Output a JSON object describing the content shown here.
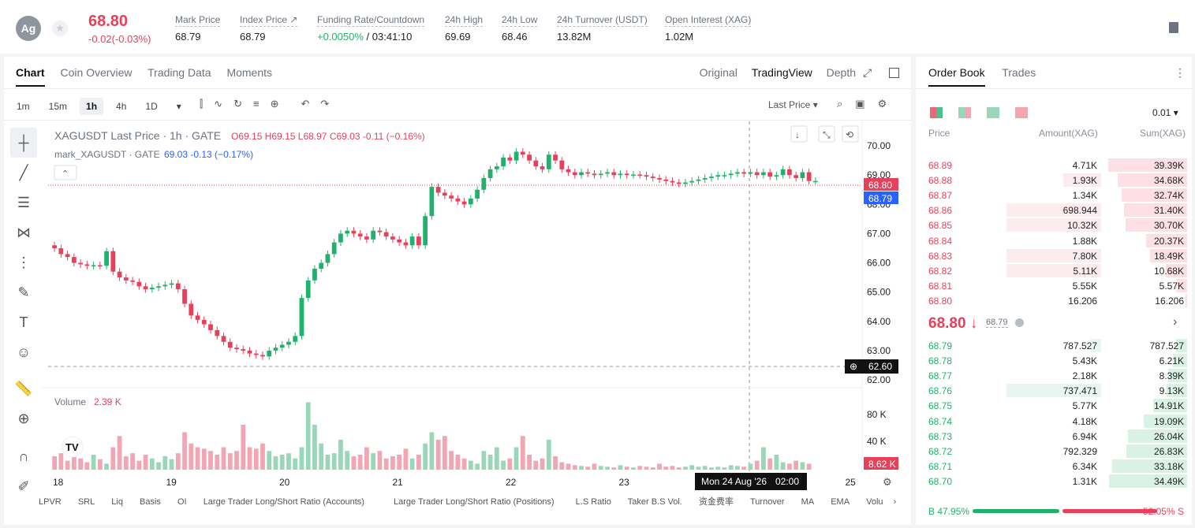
{
  "header": {
    "coin": "Ag",
    "last_price": "68.80",
    "change": "-0.02(-0.03%)",
    "stats": [
      {
        "label": "Mark Price",
        "value": "68.79"
      },
      {
        "label": "Index Price ↗",
        "value": "68.79"
      },
      {
        "label": "Funding Rate/Countdown",
        "value_rate": "+0.0050%",
        "value_count": "/ 03:41:10"
      },
      {
        "label": "24h High",
        "value": "69.69"
      },
      {
        "label": "24h Low",
        "value": "68.46"
      },
      {
        "label": "24h Turnover (USDT)",
        "value": "13.82M"
      },
      {
        "label": "Open Interest (XAG)",
        "value": "1.02M"
      }
    ]
  },
  "chart_panel": {
    "tabs": [
      "Chart",
      "Coin Overview",
      "Trading Data",
      "Moments"
    ],
    "views": [
      "Original",
      "TradingView",
      "Depth"
    ],
    "timeframes": [
      "1m",
      "15m",
      "1h",
      "4h",
      "1D"
    ],
    "last_price_select": "Last Price",
    "legend1_name": "XAGUSDT Last Price · 1h · GATE",
    "legend1_o": "O69.15",
    "legend1_h": "H69.15",
    "legend1_l": "L68.97",
    "legend1_c": "C69.03",
    "legend1_chg": "-0.11 (−0.16%)",
    "legend2_name": "mark_XAGUSDT · GATE",
    "legend2_val": "69.03",
    "legend2_chg": "-0.13 (−0.17%)",
    "volume_label": "Volume",
    "volume_value": "2.39 K",
    "price_ticks": [
      "70.00",
      "69.00",
      "68.00",
      "67.00",
      "66.00",
      "65.00",
      "64.00",
      "63.00",
      "62.00"
    ],
    "vol_ticks": [
      "80 K",
      "40 K"
    ],
    "x_ticks": [
      "18",
      "19",
      "20",
      "21",
      "22",
      "23",
      "24",
      "25"
    ],
    "crosshair_date": "Mon 24 Aug '26",
    "crosshair_time": "02:00",
    "badge_last": "68.80",
    "badge_mark": "68.79",
    "badge_cross": "62.60",
    "badge_vol": "8.62 K",
    "indicators": [
      "LPVR",
      "SRL",
      "Liq",
      "Basis",
      "OI",
      "Large Trader Long/Short Ratio (Accounts)",
      "Large Trader Long/Short Ratio (Positions)",
      "L.S Ratio",
      "Taker B.S Vol.",
      "资金费率",
      "Turnover",
      "MA",
      "EMA",
      "Volu"
    ]
  },
  "chart_data": {
    "type": "candlestick",
    "ylim": [
      62,
      70.3
    ],
    "x_labels": [
      "18",
      "19",
      "20",
      "21",
      "22",
      "23",
      "24",
      "25"
    ],
    "closes": [
      66.5,
      66.3,
      66.2,
      66,
      65.95,
      65.9,
      65.92,
      65.9,
      66.4,
      65.7,
      65.5,
      65.4,
      65.35,
      65.2,
      65.1,
      65.15,
      65.2,
      65.25,
      65.3,
      65.1,
      64.6,
      64.2,
      64.05,
      63.9,
      63.7,
      63.5,
      63.3,
      63.1,
      63.05,
      63,
      62.9,
      62.85,
      62.8,
      63,
      63.1,
      63.2,
      63.3,
      63.5,
      64.8,
      65.4,
      65.8,
      66.0,
      66.3,
      66.7,
      67.0,
      67.1,
      67.0,
      66.9,
      66.8,
      67.1,
      67.05,
      66.9,
      66.8,
      66.7,
      66.6,
      66.9,
      66.6,
      67.6,
      68.6,
      68.4,
      68.3,
      68.2,
      68.1,
      68.0,
      68.2,
      68.5,
      68.9,
      69.2,
      69.3,
      69.6,
      69.5,
      69.8,
      69.7,
      69.5,
      69.3,
      69.2,
      69.7,
      69.5,
      69.2,
      69.1,
      69.0,
      69.1,
      69.05,
      69.0,
      69.05,
      69.1,
      69.0,
      69.05,
      69.0,
      69.02,
      69.0,
      68.95,
      68.9,
      68.85,
      68.8,
      68.75,
      68.7,
      68.75,
      68.8,
      68.85,
      68.9,
      68.95,
      69.0,
      69.0,
      69.05,
      69.1,
      69.05,
      69.1,
      69.0,
      69.1,
      68.95,
      69.0,
      69.2,
      69.0,
      68.9,
      69.1,
      68.8,
      68.8
    ],
    "volumes": [
      18,
      22,
      12,
      25,
      15,
      10,
      20,
      14,
      8,
      30,
      45,
      18,
      22,
      12,
      20,
      15,
      10,
      18,
      14,
      22,
      50,
      35,
      30,
      28,
      25,
      20,
      30,
      22,
      25,
      60,
      30,
      28,
      35,
      25,
      18,
      20,
      22,
      15,
      30,
      90,
      60,
      35,
      20,
      22,
      40,
      25,
      18,
      20,
      30,
      22,
      25,
      15,
      18,
      20,
      28,
      15,
      20,
      35,
      50,
      40,
      45,
      25,
      20,
      15,
      12,
      8,
      25,
      20,
      30,
      12,
      15,
      30,
      45,
      20,
      12,
      15,
      40,
      18,
      10,
      8,
      6,
      5,
      4,
      8,
      5,
      4,
      3,
      6,
      4,
      3,
      5,
      4,
      3,
      8,
      4,
      5,
      3,
      4,
      6,
      4,
      5,
      3,
      4,
      3,
      6,
      5,
      4,
      8,
      12,
      30,
      15,
      20,
      10,
      8,
      12,
      10,
      8
    ]
  },
  "orderbook": {
    "tabs": [
      "Order Book",
      "Trades"
    ],
    "precision": "0.01",
    "headers": {
      "price": "Price",
      "amount": "Amount(XAG)",
      "sum": "Sum(XAG)"
    },
    "asks": [
      {
        "p": "68.89",
        "a": "4.71K",
        "s": "39.39K",
        "aw": 0,
        "sw": 1.0
      },
      {
        "p": "68.88",
        "a": "1.93K",
        "s": "34.68K",
        "aw": 0.3,
        "sw": 0.88
      },
      {
        "p": "68.87",
        "a": "1.34K",
        "s": "32.74K",
        "aw": 0,
        "sw": 0.83
      },
      {
        "p": "68.86",
        "a": "698.944",
        "s": "31.40K",
        "aw": 0.75,
        "sw": 0.8
      },
      {
        "p": "68.85",
        "a": "10.32K",
        "s": "30.70K",
        "aw": 0.75,
        "sw": 0.78
      },
      {
        "p": "68.84",
        "a": "1.88K",
        "s": "20.37K",
        "aw": 0,
        "sw": 0.52
      },
      {
        "p": "68.83",
        "a": "7.80K",
        "s": "18.49K",
        "aw": 0.75,
        "sw": 0.47
      },
      {
        "p": "68.82",
        "a": "5.11K",
        "s": "10.68K",
        "aw": 0.75,
        "sw": 0.27
      },
      {
        "p": "68.81",
        "a": "5.55K",
        "s": "5.57K",
        "aw": 0,
        "sw": 0.14
      },
      {
        "p": "68.80",
        "a": "16.206",
        "s": "16.206",
        "aw": 0,
        "sw": 0.02
      }
    ],
    "mid_price": "68.80",
    "mid_mark": "68.79",
    "bids": [
      {
        "p": "68.79",
        "a": "787.527",
        "s": "787.527",
        "aw": 0.08,
        "sw": 0.14
      },
      {
        "p": "68.78",
        "a": "5.43K",
        "s": "6.21K",
        "aw": 0,
        "sw": 0.18
      },
      {
        "p": "68.77",
        "a": "2.18K",
        "s": "8.39K",
        "aw": 0,
        "sw": 0.24
      },
      {
        "p": "68.76",
        "a": "737.471",
        "s": "9.13K",
        "aw": 0.75,
        "sw": 0.26
      },
      {
        "p": "68.75",
        "a": "5.77K",
        "s": "14.91K",
        "aw": 0,
        "sw": 0.43
      },
      {
        "p": "68.74",
        "a": "4.18K",
        "s": "19.09K",
        "aw": 0,
        "sw": 0.55
      },
      {
        "p": "68.73",
        "a": "6.94K",
        "s": "26.04K",
        "aw": 0,
        "sw": 0.75
      },
      {
        "p": "68.72",
        "a": "792.329",
        "s": "26.83K",
        "aw": 0,
        "sw": 0.77
      },
      {
        "p": "68.71",
        "a": "6.34K",
        "s": "33.18K",
        "aw": 0,
        "sw": 0.95
      },
      {
        "p": "68.70",
        "a": "1.31K",
        "s": "34.49K",
        "aw": 0,
        "sw": 0.99
      }
    ],
    "buy_pct": "B 47.95%",
    "sell_pct": "52.05% S",
    "buy_ratio": 0.4795
  }
}
